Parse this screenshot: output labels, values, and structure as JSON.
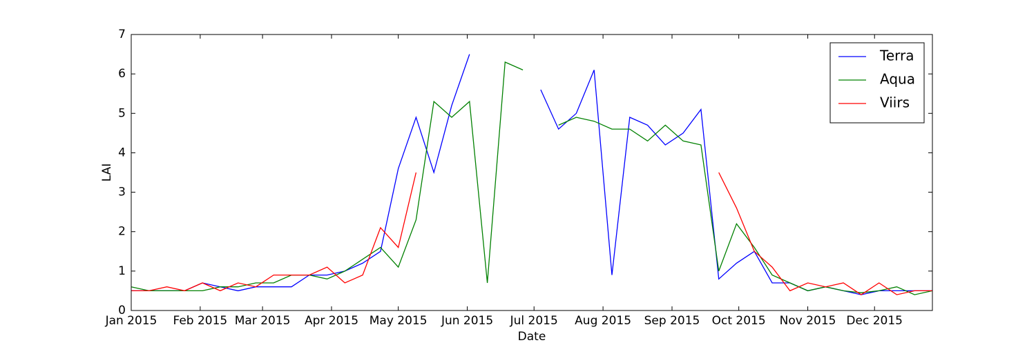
{
  "chart_data": {
    "type": "line",
    "x_label": "Date",
    "y_label": "LAI",
    "x": [
      1,
      9,
      17,
      25,
      33,
      41,
      49,
      57,
      65,
      73,
      81,
      89,
      97,
      105,
      113,
      121,
      129,
      137,
      145,
      153,
      161,
      169,
      177,
      185,
      193,
      201,
      209,
      217,
      225,
      233,
      241,
      249,
      257,
      265,
      273,
      281,
      289,
      297,
      305,
      313,
      321,
      329,
      337,
      345,
      353,
      361
    ],
    "series": [
      {
        "name": "Terra",
        "color": "#0000ff",
        "values": [
          0.5,
          0.5,
          0.5,
          0.5,
          0.7,
          0.6,
          0.5,
          0.6,
          0.6,
          0.6,
          0.9,
          0.9,
          1.0,
          1.2,
          1.5,
          3.6,
          4.9,
          3.5,
          5.2,
          6.5,
          null,
          null,
          null,
          5.6,
          4.6,
          5.0,
          6.1,
          0.9,
          4.9,
          4.7,
          4.2,
          4.5,
          5.1,
          0.8,
          1.2,
          1.5,
          0.7,
          0.7,
          0.5,
          0.6,
          0.5,
          0.4,
          0.5,
          0.5,
          0.5,
          0.5
        ]
      },
      {
        "name": "Aqua",
        "color": "#008000",
        "values": [
          0.6,
          0.5,
          0.5,
          0.5,
          0.5,
          0.6,
          0.6,
          0.7,
          0.7,
          0.9,
          0.9,
          0.8,
          1.0,
          1.3,
          1.6,
          1.1,
          2.3,
          5.3,
          4.9,
          5.3,
          0.7,
          6.3,
          6.1,
          null,
          4.7,
          4.9,
          4.8,
          4.6,
          4.6,
          4.3,
          4.7,
          4.3,
          4.2,
          1.0,
          2.2,
          1.6,
          0.9,
          0.7,
          0.5,
          0.6,
          0.5,
          0.45,
          0.5,
          0.6,
          0.4,
          0.5
        ]
      },
      {
        "name": "Viirs",
        "color": "#ff0000",
        "values": [
          0.5,
          0.5,
          0.6,
          0.5,
          0.7,
          0.5,
          0.7,
          0.6,
          0.9,
          0.9,
          0.9,
          1.1,
          0.7,
          0.9,
          2.1,
          1.6,
          3.5,
          null,
          null,
          null,
          null,
          null,
          null,
          null,
          null,
          null,
          null,
          null,
          null,
          null,
          null,
          null,
          null,
          3.5,
          2.6,
          1.5,
          1.1,
          0.5,
          0.7,
          0.6,
          0.7,
          0.4,
          0.7,
          0.4,
          0.5,
          0.5
        ]
      }
    ],
    "xlim": [
      1,
      361
    ],
    "xticks": [
      {
        "value": 1,
        "label": "Jan 2015"
      },
      {
        "value": 32,
        "label": "Feb 2015"
      },
      {
        "value": 60,
        "label": "Mar 2015"
      },
      {
        "value": 91,
        "label": "Apr 2015"
      },
      {
        "value": 121,
        "label": "May 2015"
      },
      {
        "value": 152,
        "label": "Jun 2015"
      },
      {
        "value": 182,
        "label": "Jul 2015"
      },
      {
        "value": 213,
        "label": "Aug 2015"
      },
      {
        "value": 244,
        "label": "Sep 2015"
      },
      {
        "value": 274,
        "label": "Oct 2015"
      },
      {
        "value": 305,
        "label": "Nov 2015"
      },
      {
        "value": 335,
        "label": "Dec 2015"
      }
    ],
    "ylim": [
      0,
      7
    ],
    "yticks": [
      0,
      1,
      2,
      3,
      4,
      5,
      6,
      7
    ],
    "legend": "upper right"
  }
}
